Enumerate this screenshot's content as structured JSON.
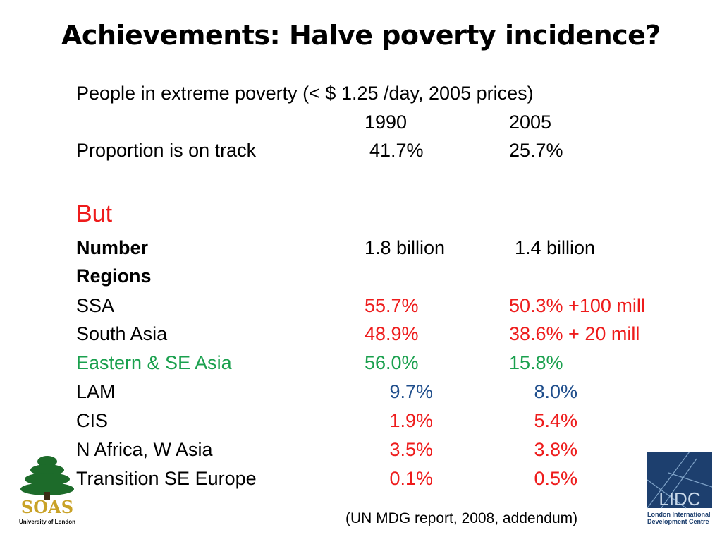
{
  "title": "Achievements: Halve poverty incidence?",
  "intro": "People in extreme poverty (< $ 1.25 /day, 2005 prices)",
  "years": [
    "1990",
    "2005"
  ],
  "proportion": {
    "label": "Proportion is on track",
    "v1990": "41.7%",
    "v2005": "25.7%"
  },
  "but_label": "But",
  "number": {
    "label": "Number",
    "v1990": "1.8 billion",
    "v2005": "1.4 billion"
  },
  "regions_label": "Regions",
  "regions": [
    {
      "name": "SSA",
      "v1990": "55.7%",
      "v2005": "50.3% +100 mill"
    },
    {
      "name": "South Asia",
      "v1990": "48.9%",
      "v2005": "38.6% +  20 mill"
    },
    {
      "name": "Eastern & SE Asia",
      "v1990": "56.0%",
      "v2005": "15.8%"
    },
    {
      "name": "LAM",
      "v1990": "9.7%",
      "v2005": "8.0%"
    },
    {
      "name": "CIS",
      "v1990": "1.9%",
      "v2005": "5.4%"
    },
    {
      "name": "N Africa, W Asia",
      "v1990": "3.5%",
      "v2005": "3.8%"
    },
    {
      "name": "Transition SE Europe",
      "v1990": "0.1%",
      "v2005": "0.5%"
    }
  ],
  "source": "(UN MDG report, 2008, addendum)",
  "logos": {
    "soas_text": "SOAS",
    "soas_subtext": "University of London",
    "lidc_text": "LIDC",
    "lidc_subtext": "London International Development Centre"
  },
  "colors": {
    "red": "#ee1c1c",
    "green": "#1aa04e",
    "blue": "#1f4e8c",
    "soas_gold": "#c9a227",
    "lidc_blue": "#1d3f6e"
  }
}
